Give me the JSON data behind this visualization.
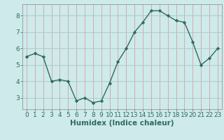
{
  "x": [
    0,
    1,
    2,
    3,
    4,
    5,
    6,
    7,
    8,
    9,
    10,
    11,
    12,
    13,
    14,
    15,
    16,
    17,
    18,
    19,
    20,
    21,
    22,
    23
  ],
  "y": [
    5.5,
    5.7,
    5.5,
    4.0,
    4.1,
    4.0,
    2.8,
    3.0,
    2.7,
    2.8,
    3.9,
    5.2,
    6.0,
    7.0,
    7.6,
    8.3,
    8.3,
    8.0,
    7.7,
    7.6,
    6.4,
    5.0,
    5.4,
    6.0
  ],
  "line_color": "#2e6b5e",
  "marker": "D",
  "marker_size": 2.2,
  "line_width": 1.0,
  "xlabel": "Humidex (Indice chaleur)",
  "xlabel_fontsize": 7.5,
  "xlim": [
    -0.5,
    23.5
  ],
  "ylim": [
    2.3,
    8.7
  ],
  "yticks": [
    3,
    4,
    5,
    6,
    7,
    8
  ],
  "xticks": [
    0,
    1,
    2,
    3,
    4,
    5,
    6,
    7,
    8,
    9,
    10,
    11,
    12,
    13,
    14,
    15,
    16,
    17,
    18,
    19,
    20,
    21,
    22,
    23
  ],
  "bg_color": "#ceeaea",
  "grid_color_x": "#d4a0a8",
  "grid_color_y": "#aac8c8",
  "tick_fontsize": 6.5,
  "tick_color": "#2e6b5e"
}
